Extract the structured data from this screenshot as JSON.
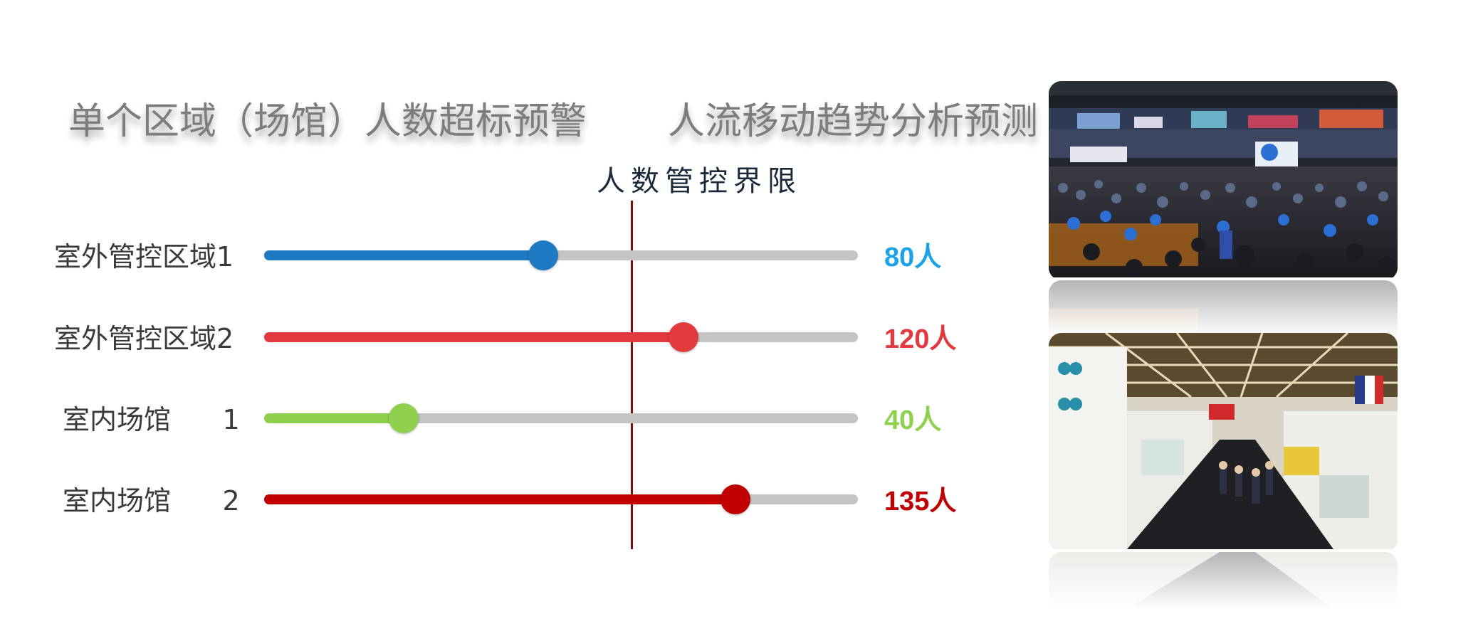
{
  "headings": {
    "left": "单个区域（场馆）人数超标预警",
    "right": "人流移动趋势分析预测"
  },
  "chart_data": {
    "type": "bar",
    "orientation": "horizontal",
    "limit_label": "人数管控界限",
    "limit_value": 105,
    "xlim": [
      0,
      170
    ],
    "categories": [
      "室外管控区域1",
      "室外管控区域2",
      "室内场馆      1",
      "室内场馆      2"
    ],
    "values": [
      80,
      120,
      40,
      135
    ],
    "value_labels": [
      "80人",
      "120人",
      "40人",
      "135人"
    ],
    "colors": [
      "#1f7ac4",
      "#e03a3e",
      "#8fd14f",
      "#c00000"
    ],
    "label_colors": [
      "#1aa3e8",
      "#e03a3e",
      "#8fd14f",
      "#c00000"
    ]
  },
  "photos": [
    {
      "name": "exhibition-hall-crowd-photo"
    },
    {
      "name": "exhibition-booth-aisle-photo"
    }
  ]
}
